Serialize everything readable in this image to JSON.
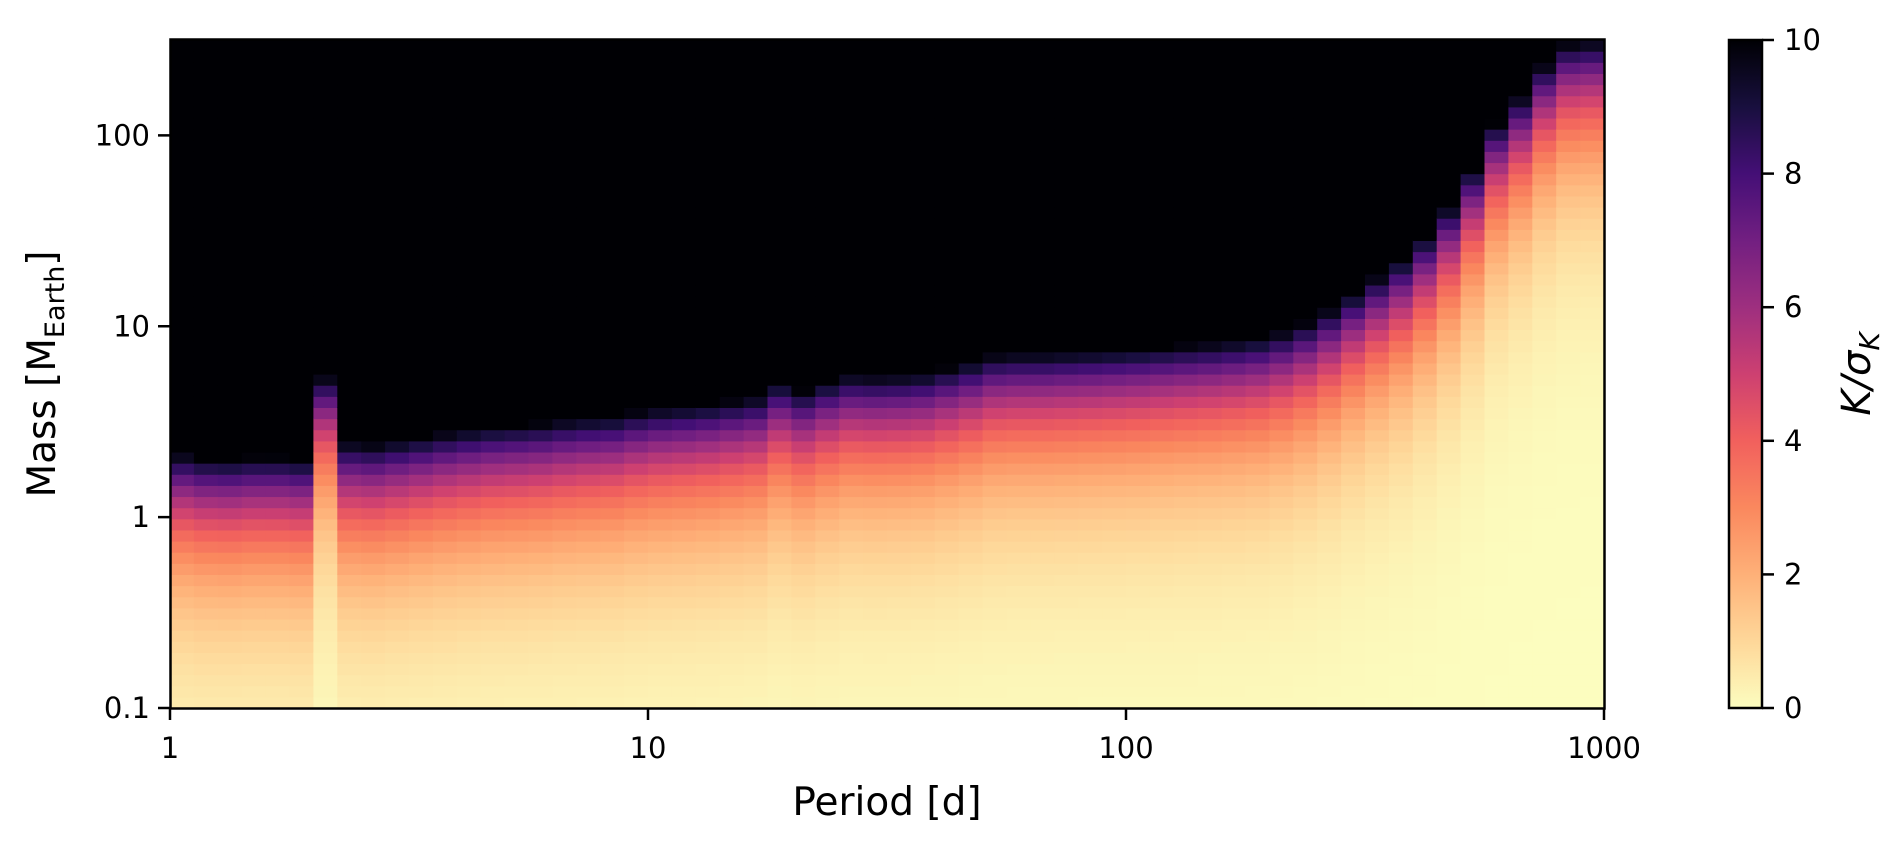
{
  "chart_data": {
    "type": "heatmap",
    "xlabel": "Period [d]",
    "ylabel": {
      "main": "Mass [M",
      "sub": "Earth",
      "close": "]"
    },
    "x_scale": "log",
    "y_scale": "log",
    "xlim": [
      1,
      1000
    ],
    "ylim": [
      0.1,
      316
    ],
    "x_ticks": [
      {
        "value": 1,
        "label": "1"
      },
      {
        "value": 10,
        "label": "10"
      },
      {
        "value": 100,
        "label": "100"
      },
      {
        "value": 1000,
        "label": "1000"
      }
    ],
    "y_ticks": [
      {
        "value": 0.1,
        "label": "0.1"
      },
      {
        "value": 1,
        "label": "1"
      },
      {
        "value": 10,
        "label": "10"
      },
      {
        "value": 100,
        "label": "100"
      }
    ],
    "colormap": "magma_r",
    "colorbar": {
      "label": {
        "base": "K/σ",
        "sub": "K"
      },
      "range": [
        0,
        10
      ],
      "ticks": [
        {
          "value": 0,
          "label": "0"
        },
        {
          "value": 2,
          "label": "2"
        },
        {
          "value": 4,
          "label": "4"
        },
        {
          "value": 6,
          "label": "6"
        },
        {
          "value": 8,
          "label": "8"
        },
        {
          "value": 10,
          "label": "10"
        }
      ]
    },
    "grid": false,
    "cell_layout": {
      "n_period_bins": 60,
      "n_mass_bins": 60
    },
    "mass_at_K_sigma_10": {
      "period_d": [
        1.0,
        1.26,
        1.58,
        2.0,
        2.1,
        2.3,
        2.6,
        3.2,
        3.8,
        4.7,
        5.8,
        7.0,
        8.5,
        10,
        13,
        17,
        18,
        21,
        26,
        31,
        38,
        47,
        55,
        63,
        80,
        100,
        130,
        160,
        200,
        250,
        300,
        400,
        500,
        600,
        700,
        800,
        1000
      ],
      "mass_earth": [
        2.2,
        2.0,
        2.1,
        2.0,
        5.8,
        2.5,
        2.4,
        2.6,
        2.8,
        3.0,
        3.1,
        3.3,
        3.4,
        3.7,
        3.9,
        4.3,
        5.3,
        4.6,
        5.6,
        5.5,
        5.7,
        6.5,
        7.3,
        7.2,
        7.4,
        7.6,
        8.0,
        8.3,
        8.9,
        11,
        15,
        25,
        50,
        120,
        180,
        300,
        316
      ]
    }
  }
}
